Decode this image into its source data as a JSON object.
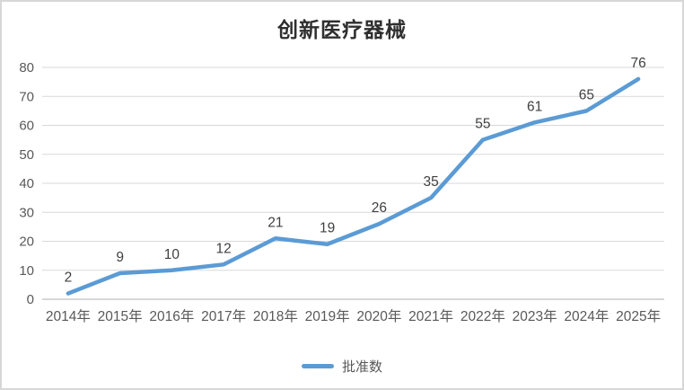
{
  "frame": {
    "background": "#ffffff",
    "border_color": "#d7d7d7"
  },
  "chart_data": {
    "type": "line",
    "title": "创新医疗器械",
    "categories": [
      "2014年",
      "2015年",
      "2016年",
      "2017年",
      "2018年",
      "2019年",
      "2020年",
      "2021年",
      "2022年",
      "2023年",
      "2024年",
      "2025年"
    ],
    "series": [
      {
        "name": "批准数",
        "values": [
          2,
          9,
          10,
          12,
          21,
          19,
          26,
          35,
          55,
          61,
          65,
          76
        ],
        "color": "#5B9BD5"
      }
    ],
    "xlabel": "",
    "ylabel": "",
    "ylim": [
      0,
      80
    ],
    "yticks": [
      0,
      10,
      20,
      30,
      40,
      50,
      60,
      70,
      80
    ],
    "grid": true,
    "gridline_color": "#D9D9D9",
    "axis_line_color": "#BFBFBF",
    "tick_label_color": "#595959",
    "data_label_color": "#404040",
    "data_labels": true,
    "legend_position": "bottom"
  }
}
